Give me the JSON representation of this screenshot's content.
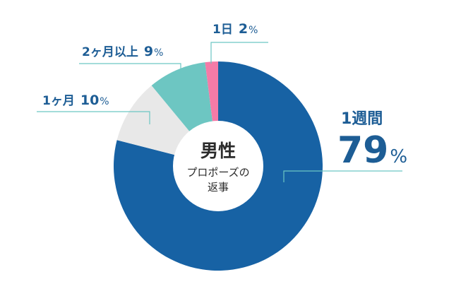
{
  "chart_data": {
    "type": "pie",
    "donut": true,
    "center_title": "男性",
    "center_sub1": "プロポーズの",
    "center_sub2": "返事",
    "slices": [
      {
        "label": "1週間",
        "value": 79,
        "color": "#1762a4"
      },
      {
        "label": "1ヶ月",
        "value": 10,
        "color": "#e8e8e8"
      },
      {
        "label": "2ヶ月以上",
        "value": 9,
        "color": "#6dc6c2"
      },
      {
        "label": "1日",
        "value": 2,
        "color": "#f47ba7"
      }
    ],
    "percent_sign": "%"
  },
  "colors": {
    "label": "#1d5d95",
    "leader": "#6cc6c3"
  }
}
